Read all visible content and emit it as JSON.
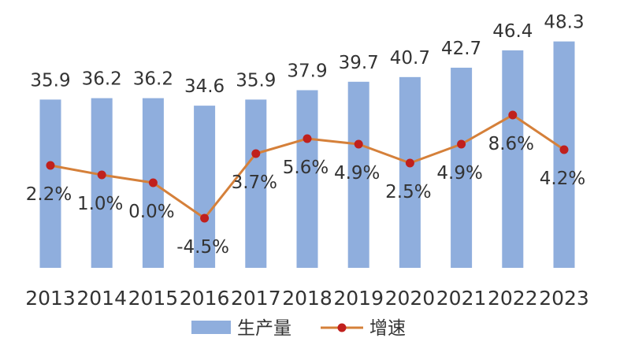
{
  "chart_data": {
    "type": "bar",
    "categories": [
      "2013",
      "2014",
      "2015",
      "2016",
      "2017",
      "2018",
      "2019",
      "2020",
      "2021",
      "2022",
      "2023"
    ],
    "series": [
      {
        "name": "生产量",
        "type": "bar",
        "values": [
          35.9,
          36.2,
          36.2,
          34.6,
          35.9,
          37.9,
          39.7,
          40.7,
          42.7,
          46.4,
          48.3
        ],
        "labels": [
          "35.9",
          "36.2",
          "36.2",
          "34.6",
          "35.9",
          "37.9",
          "39.7",
          "40.7",
          "42.7",
          "46.4",
          "48.3"
        ]
      },
      {
        "name": "增速",
        "type": "line",
        "values": [
          2.2,
          1.0,
          0.0,
          -4.5,
          3.7,
          5.6,
          4.9,
          2.5,
          4.9,
          8.6,
          4.2
        ],
        "labels": [
          "2.2%",
          "1.0%",
          "0.0%",
          "-4.5%",
          "3.7%",
          "5.6%",
          "4.9%",
          "2.5%",
          "4.9%",
          "8.6%",
          "4.2%"
        ]
      }
    ],
    "grid": false,
    "legend": "bottom",
    "colors": {
      "bar": "#8FAEDD",
      "line": "#D5803A",
      "marker": "#C0201D"
    }
  }
}
